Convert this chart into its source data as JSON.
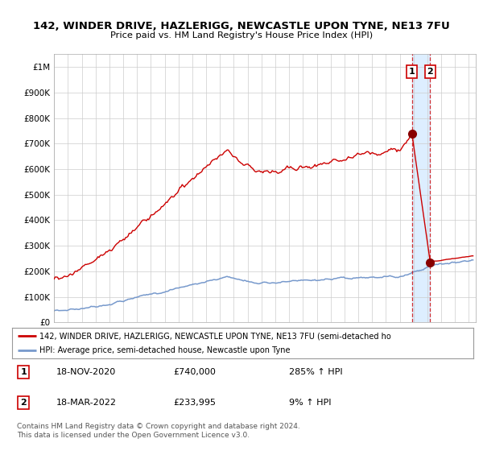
{
  "title1": "142, WINDER DRIVE, HAZLERIGG, NEWCASTLE UPON TYNE, NE13 7FU",
  "title2": "Price paid vs. HM Land Registry's House Price Index (HPI)",
  "red_label": "142, WINDER DRIVE, HAZLERIGG, NEWCASTLE UPON TYNE, NE13 7FU (semi-detached ho",
  "blue_label": "HPI: Average price, semi-detached house, Newcastle upon Tyne",
  "footer": "Contains HM Land Registry data © Crown copyright and database right 2024.\nThis data is licensed under the Open Government Licence v3.0.",
  "transaction1_date": "18-NOV-2020",
  "transaction1_price": 740000,
  "transaction1_hpi": "285% ↑ HPI",
  "transaction2_date": "18-MAR-2022",
  "transaction2_price": 233995,
  "transaction2_hpi": "9% ↑ HPI",
  "red_color": "#cc0000",
  "blue_color": "#7799cc",
  "background_color": "#ffffff",
  "grid_color": "#cccccc",
  "shade_color": "#ddeeff",
  "ylim": [
    0,
    1050000
  ],
  "yticks": [
    0,
    100000,
    200000,
    300000,
    400000,
    500000,
    600000,
    700000,
    800000,
    900000,
    1000000
  ],
  "ytick_labels": [
    "£0",
    "£100K",
    "£200K",
    "£300K",
    "£400K",
    "£500K",
    "£600K",
    "£700K",
    "£800K",
    "£900K",
    "£1M"
  ],
  "xmin": 1995.0,
  "xmax": 2025.5,
  "xticks": [
    1995,
    1996,
    1997,
    1998,
    1999,
    2000,
    2001,
    2002,
    2003,
    2004,
    2005,
    2006,
    2007,
    2008,
    2009,
    2010,
    2011,
    2012,
    2013,
    2014,
    2015,
    2016,
    2017,
    2018,
    2019,
    2020,
    2021,
    2022,
    2023,
    2024,
    2025
  ],
  "transaction1_x": 2020.88,
  "transaction2_x": 2022.21,
  "shade_x1": 2020.88,
  "shade_x2": 2022.21
}
